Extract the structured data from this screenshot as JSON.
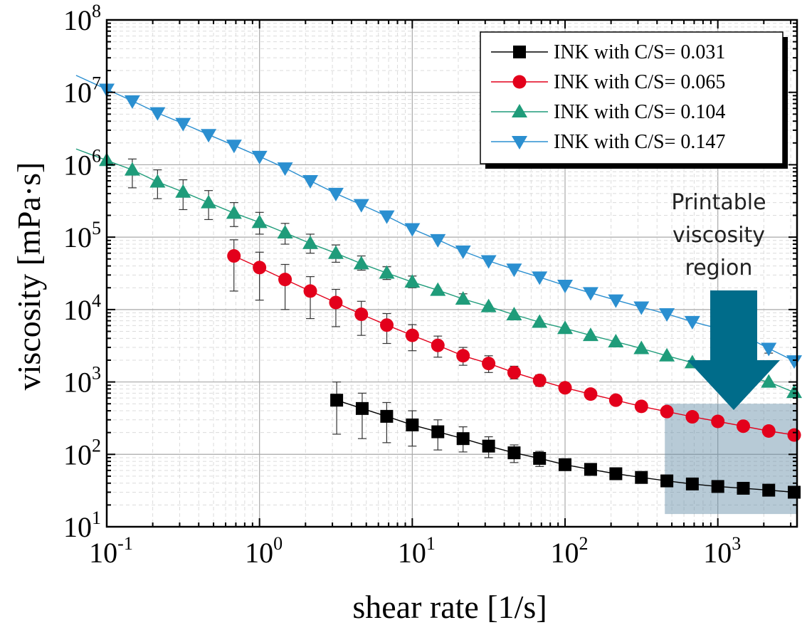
{
  "chart_data": {
    "type": "scatter",
    "xlabel": "shear rate [1/s]",
    "ylabel": "viscosity [mPa·s]",
    "x_scale": "log",
    "y_scale": "log",
    "xlim": [
      0.1,
      3300
    ],
    "ylim": [
      10,
      100000000
    ],
    "x_ticks": [
      {
        "value": 0.1,
        "base": "10",
        "exp": "-1"
      },
      {
        "value": 1,
        "base": "10",
        "exp": "0"
      },
      {
        "value": 10,
        "base": "10",
        "exp": "1"
      },
      {
        "value": 100,
        "base": "10",
        "exp": "2"
      },
      {
        "value": 1000,
        "base": "10",
        "exp": "3"
      }
    ],
    "y_ticks": [
      {
        "value": 10,
        "base": "10",
        "exp": "1"
      },
      {
        "value": 100,
        "base": "10",
        "exp": "2"
      },
      {
        "value": 1000,
        "base": "10",
        "exp": "3"
      },
      {
        "value": 10000,
        "base": "10",
        "exp": "4"
      },
      {
        "value": 100000,
        "base": "10",
        "exp": "5"
      },
      {
        "value": 1000000,
        "base": "10",
        "exp": "6"
      },
      {
        "value": 10000000,
        "base": "10",
        "exp": "7"
      },
      {
        "value": 100000000,
        "base": "10",
        "exp": "8"
      }
    ],
    "grid": true,
    "legend_position": "top-right",
    "series": [
      {
        "name": "INK with C/S= 0.031",
        "color": "#000000",
        "marker": "square",
        "points": [
          {
            "x": 3.2,
            "y": 560,
            "lo": 190,
            "hi": 1000
          },
          {
            "x": 4.7,
            "y": 430,
            "lo": 165,
            "hi": 700
          },
          {
            "x": 6.8,
            "y": 335,
            "lo": 145,
            "hi": 520
          },
          {
            "x": 10,
            "y": 255,
            "lo": 130,
            "hi": 400
          },
          {
            "x": 14.7,
            "y": 205,
            "lo": 115,
            "hi": 300
          },
          {
            "x": 21.5,
            "y": 165,
            "lo": 108,
            "hi": 240
          },
          {
            "x": 31.6,
            "y": 130,
            "lo": 90,
            "hi": 175
          },
          {
            "x": 46.4,
            "y": 105,
            "lo": 77,
            "hi": 135
          },
          {
            "x": 68.1,
            "y": 88,
            "lo": 68,
            "hi": 110
          },
          {
            "x": 100,
            "y": 72,
            "lo": 62,
            "hi": 85
          },
          {
            "x": 147,
            "y": 62
          },
          {
            "x": 215,
            "y": 54
          },
          {
            "x": 316,
            "y": 48
          },
          {
            "x": 464,
            "y": 43
          },
          {
            "x": 681,
            "y": 39
          },
          {
            "x": 1000,
            "y": 36
          },
          {
            "x": 1468,
            "y": 34
          },
          {
            "x": 2154,
            "y": 32
          },
          {
            "x": 3162,
            "y": 30
          }
        ]
      },
      {
        "name": "INK with C/S= 0.065",
        "color": "#e3001b",
        "marker": "circle",
        "points": [
          {
            "x": 0.68,
            "y": 55000,
            "lo": 18000,
            "hi": 92000
          },
          {
            "x": 1,
            "y": 38000,
            "lo": 13500,
            "hi": 62000
          },
          {
            "x": 1.47,
            "y": 26000,
            "lo": 10000,
            "hi": 42000
          },
          {
            "x": 2.15,
            "y": 18000,
            "lo": 7500,
            "hi": 28500
          },
          {
            "x": 3.16,
            "y": 12500,
            "lo": 5800,
            "hi": 19000
          },
          {
            "x": 4.64,
            "y": 8600,
            "lo": 4400,
            "hi": 13000
          },
          {
            "x": 6.81,
            "y": 6100,
            "lo": 3400,
            "hi": 8800
          },
          {
            "x": 10,
            "y": 4400,
            "lo": 2700,
            "hi": 6200
          },
          {
            "x": 14.7,
            "y": 3200,
            "lo": 2200,
            "hi": 4300
          },
          {
            "x": 21.5,
            "y": 2300,
            "lo": 1700,
            "hi": 3000
          },
          {
            "x": 31.6,
            "y": 1800,
            "lo": 1350,
            "hi": 2300
          },
          {
            "x": 46.4,
            "y": 1350,
            "lo": 1100,
            "hi": 1650
          },
          {
            "x": 68.1,
            "y": 1050,
            "lo": 870,
            "hi": 1250
          },
          {
            "x": 100,
            "y": 830,
            "lo": 720,
            "hi": 950
          },
          {
            "x": 147,
            "y": 680,
            "lo": 600,
            "hi": 770
          },
          {
            "x": 215,
            "y": 560,
            "lo": 500,
            "hi": 620
          },
          {
            "x": 316,
            "y": 460,
            "lo": 410,
            "hi": 520
          },
          {
            "x": 464,
            "y": 390
          },
          {
            "x": 681,
            "y": 330
          },
          {
            "x": 1000,
            "y": 285
          },
          {
            "x": 1468,
            "y": 245
          },
          {
            "x": 2154,
            "y": 210
          },
          {
            "x": 3162,
            "y": 185
          }
        ]
      },
      {
        "name": "INK with C/S= 0.104",
        "color": "#1f9c7a",
        "marker": "triangle-up",
        "points": [
          {
            "x": 0.1,
            "y": 1150000
          },
          {
            "x": 0.147,
            "y": 850000,
            "lo": 480000,
            "hi": 1200000
          },
          {
            "x": 0.215,
            "y": 580000,
            "lo": 340000,
            "hi": 850000
          },
          {
            "x": 0.316,
            "y": 420000,
            "lo": 240000,
            "hi": 620000
          },
          {
            "x": 0.464,
            "y": 300000,
            "lo": 175000,
            "hi": 440000
          },
          {
            "x": 0.681,
            "y": 215000,
            "lo": 140000,
            "hi": 300000
          },
          {
            "x": 1,
            "y": 160000,
            "lo": 110000,
            "hi": 220000
          },
          {
            "x": 1.47,
            "y": 115000,
            "lo": 80000,
            "hi": 155000
          },
          {
            "x": 2.15,
            "y": 82000,
            "lo": 60000,
            "hi": 110000
          },
          {
            "x": 3.16,
            "y": 60000,
            "lo": 45000,
            "hi": 78000
          },
          {
            "x": 4.64,
            "y": 43000,
            "lo": 35000,
            "hi": 55000
          },
          {
            "x": 6.81,
            "y": 32000,
            "lo": 26000,
            "hi": 39000
          },
          {
            "x": 10,
            "y": 24000,
            "lo": 20000,
            "hi": 29000
          },
          {
            "x": 14.7,
            "y": 18500
          },
          {
            "x": 21.5,
            "y": 14000,
            "lo": 12000,
            "hi": 16500
          },
          {
            "x": 31.6,
            "y": 11000
          },
          {
            "x": 46.4,
            "y": 8500
          },
          {
            "x": 68.1,
            "y": 6700
          },
          {
            "x": 100,
            "y": 5500
          },
          {
            "x": 147,
            "y": 4400
          },
          {
            "x": 215,
            "y": 3600
          },
          {
            "x": 316,
            "y": 2900
          },
          {
            "x": 464,
            "y": 2300
          },
          {
            "x": 681,
            "y": 1850
          },
          {
            "x": 1000,
            "y": 1500
          },
          {
            "x": 1468,
            "y": 1200
          },
          {
            "x": 2154,
            "y": 1000
          },
          {
            "x": 3162,
            "y": 720
          }
        ]
      },
      {
        "name": "INK with C/S= 0.147",
        "color": "#2b8fd0",
        "marker": "triangle-down",
        "points": [
          {
            "x": 0.1,
            "y": 11000000
          },
          {
            "x": 0.147,
            "y": 7600000
          },
          {
            "x": 0.215,
            "y": 5200000
          },
          {
            "x": 0.316,
            "y": 3700000
          },
          {
            "x": 0.464,
            "y": 2600000
          },
          {
            "x": 0.681,
            "y": 1850000
          },
          {
            "x": 1,
            "y": 1300000
          },
          {
            "x": 1.47,
            "y": 900000
          },
          {
            "x": 2.15,
            "y": 600000
          },
          {
            "x": 3.16,
            "y": 400000
          },
          {
            "x": 4.64,
            "y": 280000
          },
          {
            "x": 6.81,
            "y": 195000
          },
          {
            "x": 10,
            "y": 130000
          },
          {
            "x": 14.7,
            "y": 92000
          },
          {
            "x": 21.5,
            "y": 64000
          },
          {
            "x": 31.6,
            "y": 47000
          },
          {
            "x": 46.4,
            "y": 36000
          },
          {
            "x": 68.1,
            "y": 28000
          },
          {
            "x": 100,
            "y": 21500
          },
          {
            "x": 147,
            "y": 17000
          },
          {
            "x": 215,
            "y": 13500
          },
          {
            "x": 316,
            "y": 10800
          },
          {
            "x": 464,
            "y": 8700
          },
          {
            "x": 681,
            "y": 6800
          },
          {
            "x": 1000,
            "y": 5500
          },
          {
            "x": 1468,
            "y": 4400
          },
          {
            "x": 2154,
            "y": 2900,
            "lo": 2500,
            "hi": 3400
          },
          {
            "x": 3162,
            "y": 1950
          }
        ]
      }
    ],
    "annotation": {
      "lines": [
        "Printable",
        "viscosity",
        "region"
      ],
      "arrow_color": "#006c8a",
      "region": {
        "x_from": 450,
        "x_to": 3300,
        "y_from": 15,
        "y_to": 500
      },
      "region_color": "#5f8aa3"
    }
  }
}
